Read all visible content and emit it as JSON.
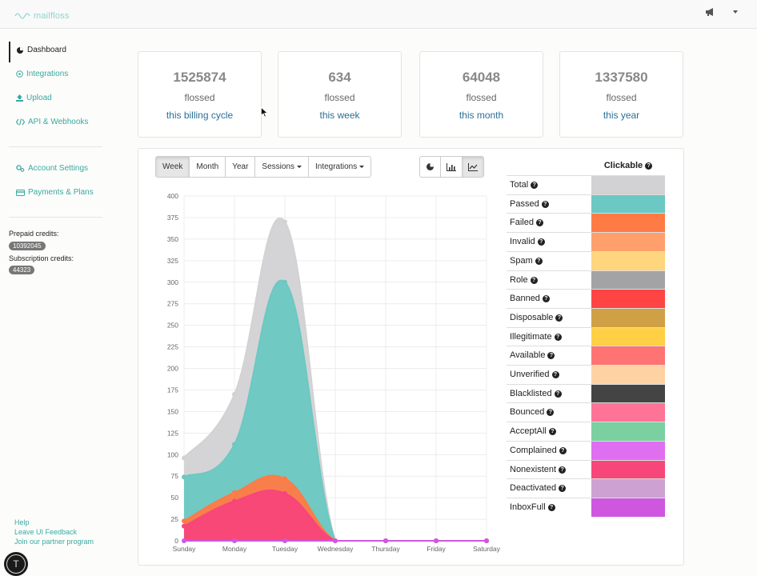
{
  "app": {
    "logo_text": "mailfloss"
  },
  "sidebar": {
    "items": [
      {
        "label": "Dashboard",
        "icon": "pie-chart-icon"
      },
      {
        "label": "Integrations",
        "icon": "plus-circle-icon"
      },
      {
        "label": "Upload",
        "icon": "upload-icon"
      },
      {
        "label": "API & Webhooks",
        "icon": "code-icon"
      },
      {
        "label": "Account Settings",
        "icon": "gears-icon"
      },
      {
        "label": "Payments & Plans",
        "icon": "credit-card-icon"
      }
    ],
    "prepaid_label": "Prepaid credits:",
    "prepaid_value": "10392045",
    "subscription_label": "Subscription credits:",
    "subscription_value": "44323",
    "footer_links": [
      "Help",
      "Leave UI Feedback",
      "Join our partner program"
    ],
    "avatar_letter": "T"
  },
  "stats": [
    {
      "value": "1525874",
      "sub": "flossed",
      "link": "this billing cycle"
    },
    {
      "value": "634",
      "sub": "flossed",
      "link": "this week"
    },
    {
      "value": "64048",
      "sub": "flossed",
      "link": "this month"
    },
    {
      "value": "1337580",
      "sub": "flossed",
      "link": "this year"
    }
  ],
  "toolbar": {
    "week": "Week",
    "month": "Month",
    "year": "Year",
    "sessions": "Sessions",
    "integrations": "Integrations",
    "view_icons": [
      "pie-chart-icon",
      "bar-chart-icon",
      "line-chart-icon"
    ]
  },
  "legend": {
    "header": "Clickable",
    "items": [
      {
        "label": "Total",
        "color": "#d2d2d4"
      },
      {
        "label": "Passed",
        "color": "#6cc8c2"
      },
      {
        "label": "Failed",
        "color": "#ff7b45"
      },
      {
        "label": "Invalid",
        "color": "#ffa06c"
      },
      {
        "label": "Spam",
        "color": "#ffd57d"
      },
      {
        "label": "Role",
        "color": "#a3a3a6"
      },
      {
        "label": "Banned",
        "color": "#ff4444"
      },
      {
        "label": "Disposable",
        "color": "#cfa045"
      },
      {
        "label": "Illegitimate",
        "color": "#ffd045"
      },
      {
        "label": "Available",
        "color": "#ff7373"
      },
      {
        "label": "Unverified",
        "color": "#ffd2a4"
      },
      {
        "label": "Blacklisted",
        "color": "#444444"
      },
      {
        "label": "Bounced",
        "color": "#ff7397"
      },
      {
        "label": "AcceptAll",
        "color": "#7ad0a0"
      },
      {
        "label": "Complained",
        "color": "#e06ef0"
      },
      {
        "label": "Nonexistent",
        "color": "#f7467a"
      },
      {
        "label": "Deactivated",
        "color": "#cda2d2"
      },
      {
        "label": "InboxFull",
        "color": "#cf57e0"
      }
    ]
  },
  "chart_data": {
    "type": "area",
    "categories": [
      "Sunday",
      "Monday",
      "Tuesday",
      "Wednesday",
      "Thursday",
      "Friday",
      "Saturday"
    ],
    "ylim": [
      0,
      400
    ],
    "yticks": [
      0,
      25,
      50,
      75,
      100,
      125,
      150,
      175,
      200,
      225,
      250,
      275,
      300,
      325,
      350,
      375,
      400
    ],
    "grid": true,
    "series": [
      {
        "name": "Total",
        "color": "#d2d2d4",
        "values": [
          96,
          170,
          370,
          0,
          0,
          0,
          0
        ]
      },
      {
        "name": "Passed",
        "color": "#6cc8c2",
        "values": [
          74,
          112,
          300,
          0,
          0,
          0,
          0
        ]
      },
      {
        "name": "Failed",
        "color": "#ff7b45",
        "values": [
          23,
          56,
          72,
          0,
          0,
          0,
          0
        ]
      },
      {
        "name": "Nonexistent",
        "color": "#f7467a",
        "values": [
          17,
          46,
          55,
          0,
          0,
          0,
          0
        ]
      },
      {
        "name": "InboxFull",
        "color": "#cf57e0",
        "values": [
          0,
          0,
          0,
          0,
          0,
          0,
          0
        ]
      }
    ]
  }
}
